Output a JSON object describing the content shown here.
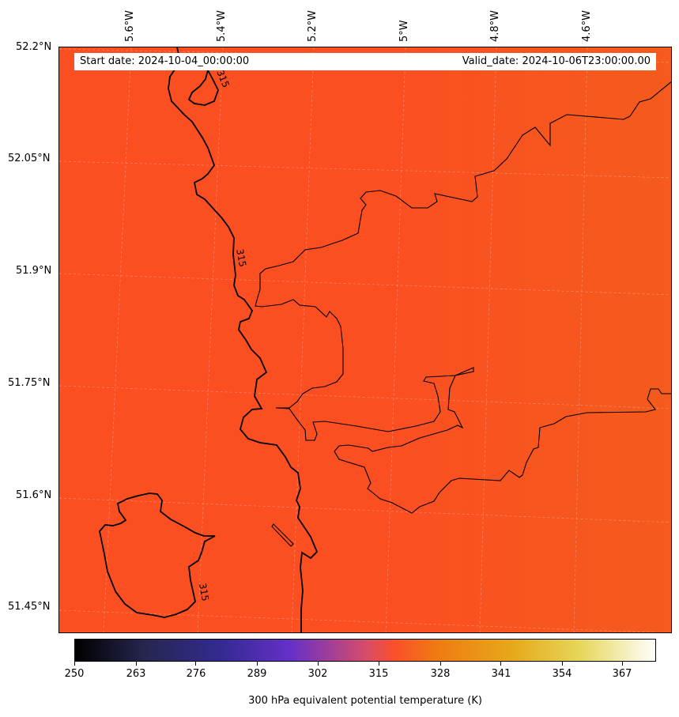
{
  "header": {
    "start_date": "Start date: 2024-10-04_00:00:00",
    "valid_date": "Valid_date: 2024-10-06T23:00:00.00"
  },
  "axes": {
    "latitude_labels": [
      "52.2°N",
      "52.05°N",
      "51.9°N",
      "51.75°N",
      "51.6°N",
      "51.45°N"
    ],
    "longitude_labels": [
      "5.6°W",
      "5.4°W",
      "5.2°W",
      "5°W",
      "4.8°W",
      "4.6°W"
    ]
  },
  "contour": {
    "level_label": "315",
    "color": "#000000"
  },
  "colorbar": {
    "title": "300 hPa equivalent potential temperature (K)",
    "tick_labels": [
      "250",
      "263",
      "276",
      "289",
      "302",
      "315",
      "328",
      "341",
      "354",
      "367"
    ],
    "range": [
      250,
      372
    ],
    "colormap": "CMRmap",
    "field_color": "#fb4f22",
    "field_color_east": "#f65a1c"
  }
}
